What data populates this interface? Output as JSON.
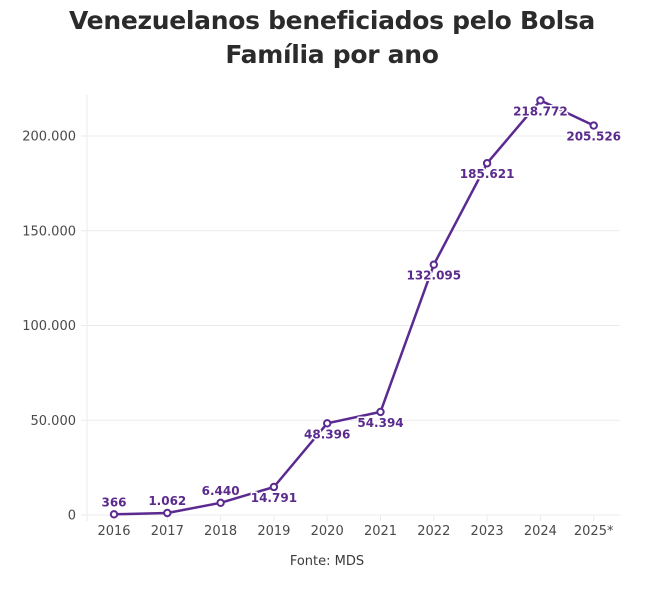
{
  "chart_data": {
    "type": "line",
    "title": "Venezuelanos beneficiados pelo Bolsa Família por ano",
    "title_lines": [
      "Venezuelanos beneficiados pelo Bolsa",
      "Família por ano"
    ],
    "xlabel": "",
    "ylabel": "",
    "categories": [
      "2016",
      "2017",
      "2018",
      "2019",
      "2020",
      "2021",
      "2022",
      "2023",
      "2024",
      "2025*"
    ],
    "series": [
      {
        "name": "Venezuelanos beneficiados",
        "color": "#5b2a91",
        "values": [
          366,
          1062,
          6440,
          14791,
          48396,
          54394,
          132095,
          185621,
          218772,
          205526
        ],
        "labels": [
          "366",
          "1.062",
          "6.440",
          "14.791",
          "48.396",
          "54.394",
          "132.095",
          "185.621",
          "218.772",
          "205.526"
        ],
        "label_position": [
          "above",
          "above",
          "above",
          "below",
          "below",
          "below",
          "below",
          "below",
          "below",
          "below"
        ]
      }
    ],
    "ylim": [
      0,
      220000
    ],
    "yticks": [
      0,
      50000,
      100000,
      150000,
      200000
    ],
    "ytick_labels": [
      "0",
      "50.000",
      "100.000",
      "150.000",
      "200.000"
    ],
    "grid": true,
    "legend": "none",
    "source": "Fonte: MDS"
  }
}
